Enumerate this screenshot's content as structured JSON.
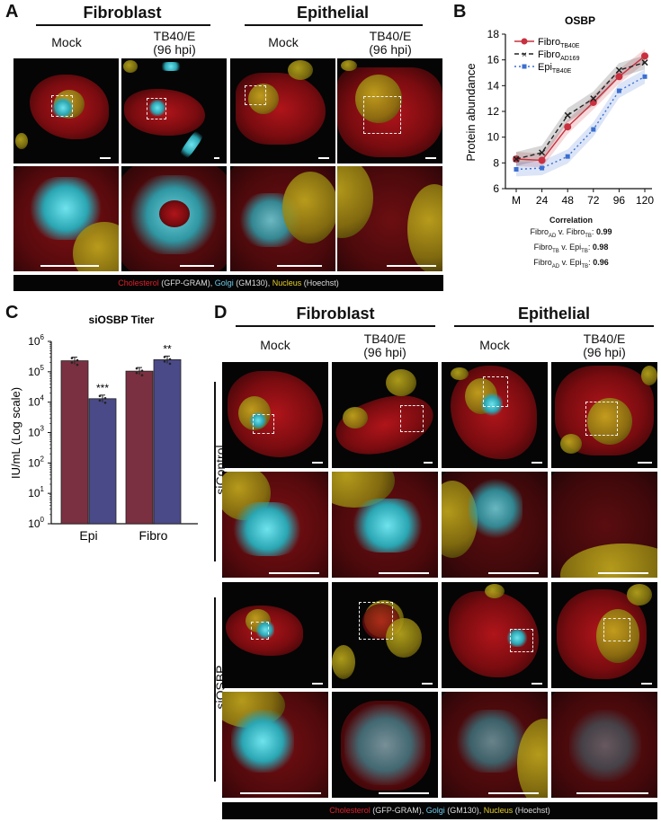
{
  "panelA": {
    "letter": "A",
    "groups": [
      "Fibroblast",
      "Epithelial"
    ],
    "columns": [
      "Mock",
      "TB40/E\n(96 hpi)",
      "Mock",
      "TB40/E\n(96 hpi)"
    ],
    "legend": {
      "cholesterol": "Cholesterol",
      "gram": " (GFP-GRAM), ",
      "golgi": "Golgi",
      "gm130": " (GM130), ",
      "nucleus": "Nucleus",
      "hoechst": " (Hoechst)"
    }
  },
  "panelB": {
    "letter": "B",
    "correlation_title": "Correlation",
    "correlations": [
      {
        "a": "Fibro",
        "a_sub": "AD",
        "b": "Fibro",
        "b_sub": "TB",
        "value": "0.99"
      },
      {
        "a": "Fibro",
        "a_sub": "TB",
        "b": "Epi",
        "b_sub": "TB",
        "value": "0.98"
      },
      {
        "a": "Fibro",
        "a_sub": "AD",
        "b": "Epi",
        "b_sub": "TB",
        "value": "0.96"
      }
    ]
  },
  "panelC": {
    "letter": "C"
  },
  "panelD": {
    "letter": "D",
    "groups": [
      "Fibroblast",
      "Epithelial"
    ],
    "columns": [
      "Mock",
      "TB40/E\n(96 hpi)",
      "Mock",
      "TB40/E\n(96 hpi)"
    ],
    "rows": [
      "siControl",
      "siOSBP"
    ],
    "legend": {
      "cholesterol": "Cholesterol",
      "gram": " (GFP-GRAM), ",
      "golgi": "Golgi",
      "gm130": " (GM130), ",
      "nucleus": "Nucleus",
      "hoechst": " (Hoechst)"
    }
  },
  "colors": {
    "fibro_tb": "#c8303f",
    "fibro_ad": "#222222",
    "epi_tb": "#3b6fd0",
    "bar_epi_like": "#7a3040",
    "bar_fibro_like": "#4a4a88"
  },
  "chart_data": [
    {
      "type": "line",
      "title": "OSBP",
      "xlabel": "",
      "ylabel": "Protein abundance",
      "x": [
        "M",
        "24",
        "48",
        "72",
        "96",
        "120"
      ],
      "ylim": [
        6,
        18
      ],
      "yticks": [
        6,
        8,
        10,
        12,
        14,
        16,
        18
      ],
      "series": [
        {
          "name": "Fibro",
          "sub": "TB40E",
          "values": [
            8.3,
            8.2,
            10.8,
            12.7,
            14.7,
            16.3
          ]
        },
        {
          "name": "Fibro",
          "sub": "AD169",
          "values": [
            8.3,
            8.8,
            11.7,
            13.0,
            15.2,
            15.8
          ]
        },
        {
          "name": "Epi",
          "sub": "TB40E",
          "values": [
            7.5,
            7.6,
            8.5,
            10.6,
            13.6,
            14.7
          ]
        }
      ]
    },
    {
      "type": "bar",
      "title": "siOSBP Titer",
      "ylabel": "IU/mL (Log scale)",
      "categories": [
        "Epi",
        "Fibro"
      ],
      "log_scale": true,
      "ylim": [
        1,
        1000000
      ],
      "ytick_exponents": [
        "0",
        "1",
        "2",
        "3",
        "4",
        "5",
        "6"
      ],
      "series": [
        {
          "name": "",
          "values": [
            230000,
            105000
          ]
        },
        {
          "name": "",
          "values": [
            13000,
            250000
          ]
        }
      ],
      "annotations": [
        {
          "category": "Epi",
          "series": 1,
          "text": "***"
        },
        {
          "category": "Fibro",
          "series": 1,
          "text": "**"
        }
      ]
    }
  ]
}
